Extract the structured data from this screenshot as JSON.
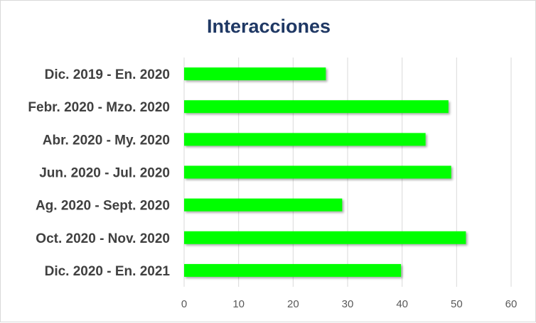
{
  "chart_data": {
    "type": "bar",
    "orientation": "horizontal",
    "title": "Interacciones",
    "categories": [
      "Dic. 2019 - En. 2020",
      "Febr. 2020 - Mzo. 2020",
      "Abr. 2020 - My. 2020",
      "Jun. 2020 - Jul. 2020",
      "Ag. 2020 - Sept. 2020",
      "Oct. 2020 - Nov. 2020",
      "Dic. 2020 - En. 2021"
    ],
    "values": [
      26,
      48.5,
      44.3,
      49,
      29,
      51.7,
      39.8
    ],
    "xlim": [
      0,
      60
    ],
    "xticks": [
      0,
      10,
      20,
      30,
      40,
      50,
      60
    ],
    "grid": true,
    "legend": "none",
    "colors": {
      "bar": "#00ff00",
      "title": "#1f3864",
      "labels": "#404040",
      "grid": "#d9d9d9"
    }
  }
}
